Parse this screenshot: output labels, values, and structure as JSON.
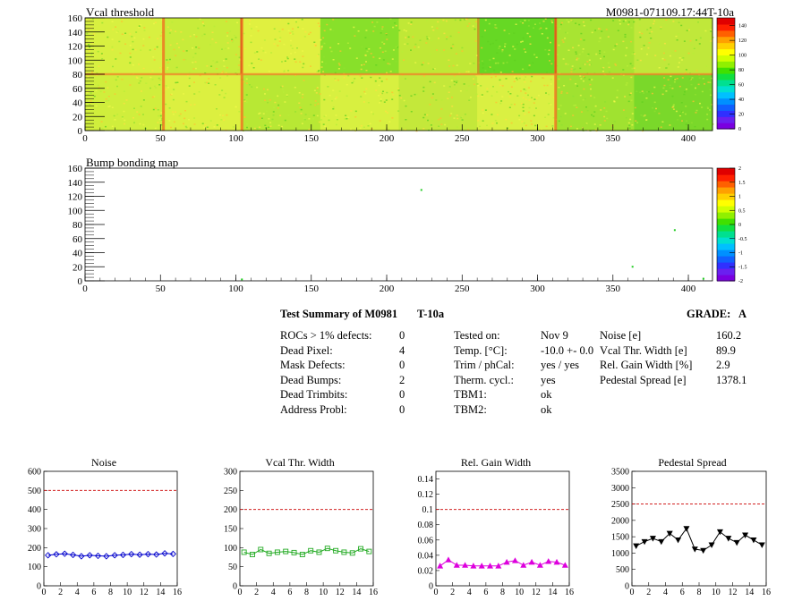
{
  "maps": {
    "vcal": {
      "title": "Vcal threshold",
      "run_id": "M0981-071109.17:44T-10a",
      "x_ticks": [
        "0",
        "50",
        "100",
        "150",
        "200",
        "250",
        "300",
        "350",
        "400"
      ],
      "y_ticks": [
        "0",
        "20",
        "40",
        "60",
        "80",
        "100",
        "120",
        "140",
        "160"
      ],
      "palette_ticks": [
        "0",
        "20",
        "40",
        "60",
        "80",
        "100",
        "120",
        "140"
      ],
      "xlim": [
        0,
        416
      ],
      "ylim": [
        0,
        160
      ]
    },
    "bump": {
      "title": "Bump bonding map",
      "x_ticks": [
        "0",
        "50",
        "100",
        "150",
        "200",
        "250",
        "300",
        "350",
        "400"
      ],
      "y_ticks": [
        "0",
        "20",
        "40",
        "60",
        "80",
        "100",
        "120",
        "140",
        "160"
      ],
      "palette_ticks": [
        "-2",
        "-1.5",
        "-1",
        "-0.5",
        "0",
        "0.5",
        "1",
        "1.5",
        "2"
      ],
      "xlim": [
        0,
        416
      ],
      "ylim": [
        0,
        160
      ],
      "points": [
        [
          223,
          129
        ],
        [
          391,
          72
        ],
        [
          363,
          20
        ],
        [
          104,
          2
        ],
        [
          410,
          3
        ]
      ]
    }
  },
  "summary": {
    "title": "Test Summary of M0981",
    "test": "T-10a",
    "grade_label": "GRADE:",
    "grade": "A",
    "defects": [
      {
        "label": "ROCs > 1% defects:",
        "value": "0"
      },
      {
        "label": "Dead Pixel:",
        "value": "4"
      },
      {
        "label": "Mask Defects:",
        "value": "0"
      },
      {
        "label": "Dead Bumps:",
        "value": "2"
      },
      {
        "label": "Dead Trimbits:",
        "value": "0"
      },
      {
        "label": "Address Probl:",
        "value": "0"
      }
    ],
    "conditions": [
      {
        "label": "Tested on:",
        "value": "Nov 9"
      },
      {
        "label": "Temp. [°C]:",
        "value": "-10.0 +- 0.0"
      },
      {
        "label": "Trim / phCal:",
        "value": "yes / yes"
      },
      {
        "label": "Therm. cycl.:",
        "value": "yes"
      },
      {
        "label": "TBM1:",
        "value": "ok"
      },
      {
        "label": "TBM2:",
        "value": "ok"
      }
    ],
    "results": [
      {
        "label": "Noise [e]",
        "value": "160.2"
      },
      {
        "label": "Vcal Thr. Width [e]",
        "value": "89.9"
      },
      {
        "label": "Rel. Gain Width [%]",
        "value": "2.9"
      },
      {
        "label": "Pedestal Spread [e]",
        "value": "1378.1"
      }
    ]
  },
  "chart_data": [
    {
      "type": "line",
      "title": "Noise",
      "x": [
        0,
        1,
        2,
        3,
        4,
        5,
        6,
        7,
        8,
        9,
        10,
        11,
        12,
        13,
        14,
        15
      ],
      "values": [
        160,
        165,
        168,
        162,
        155,
        160,
        157,
        155,
        160,
        162,
        166,
        163,
        166,
        164,
        170,
        167
      ],
      "threshold": 500,
      "xlim": [
        0,
        16
      ],
      "ylim": [
        0,
        600
      ],
      "x_ticks": [
        "0",
        "2",
        "4",
        "6",
        "8",
        "10",
        "12",
        "14",
        "16"
      ],
      "y_ticks": [
        "0",
        "100",
        "200",
        "300",
        "400",
        "500",
        "600"
      ],
      "color": "#0000cc",
      "marker": "diamond"
    },
    {
      "type": "line",
      "title": "Vcal Thr. Width",
      "x": [
        0,
        1,
        2,
        3,
        4,
        5,
        6,
        7,
        8,
        9,
        10,
        11,
        12,
        13,
        14,
        15
      ],
      "values": [
        88,
        82,
        95,
        85,
        88,
        90,
        87,
        82,
        92,
        88,
        98,
        92,
        88,
        86,
        97,
        90
      ],
      "threshold": 200,
      "xlim": [
        0,
        16
      ],
      "ylim": [
        0,
        300
      ],
      "x_ticks": [
        "0",
        "2",
        "4",
        "6",
        "8",
        "10",
        "12",
        "14",
        "16"
      ],
      "y_ticks": [
        "0",
        "50",
        "100",
        "150",
        "200",
        "250",
        "300"
      ],
      "color": "#22aa22",
      "marker": "square"
    },
    {
      "type": "line",
      "title": "Rel. Gain Width",
      "x": [
        0,
        1,
        2,
        3,
        4,
        5,
        6,
        7,
        8,
        9,
        10,
        11,
        12,
        13,
        14,
        15
      ],
      "values": [
        0.026,
        0.034,
        0.027,
        0.027,
        0.026,
        0.026,
        0.026,
        0.026,
        0.031,
        0.033,
        0.027,
        0.031,
        0.027,
        0.032,
        0.031,
        0.027
      ],
      "threshold": 0.1,
      "xlim": [
        0,
        16
      ],
      "ylim": [
        0,
        0.15
      ],
      "x_ticks": [
        "0",
        "2",
        "4",
        "6",
        "8",
        "10",
        "12",
        "14",
        "16"
      ],
      "y_ticks": [
        "0",
        "0.02",
        "0.04",
        "0.06",
        "0.08",
        "0.1",
        "0.12",
        "0.14"
      ],
      "color": "#dd00dd",
      "marker": "triangle"
    },
    {
      "type": "line",
      "title": "Pedestal Spread",
      "x": [
        0,
        1,
        2,
        3,
        4,
        5,
        6,
        7,
        8,
        9,
        10,
        11,
        12,
        13,
        14,
        15
      ],
      "values": [
        1220,
        1350,
        1450,
        1350,
        1600,
        1400,
        1750,
        1120,
        1080,
        1250,
        1650,
        1450,
        1320,
        1550,
        1400,
        1250
      ],
      "threshold": 2500,
      "xlim": [
        0,
        16
      ],
      "ylim": [
        0,
        3500
      ],
      "x_ticks": [
        "0",
        "2",
        "4",
        "6",
        "8",
        "10",
        "12",
        "14",
        "16"
      ],
      "y_ticks": [
        "0",
        "500",
        "1000",
        "1500",
        "2000",
        "2500",
        "3000",
        "3500"
      ],
      "color": "#000000",
      "marker": "triangle-down"
    }
  ],
  "colors": {
    "threshold_line": "#cc0000"
  }
}
